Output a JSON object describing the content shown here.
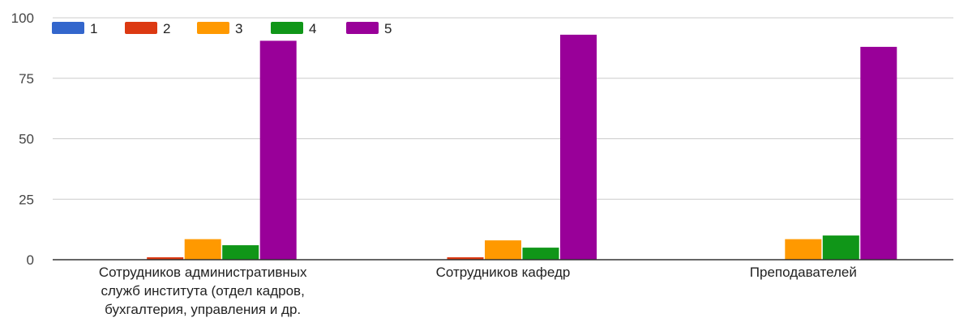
{
  "chart_data": {
    "type": "bar",
    "categories": [
      [
        "Сотрудников административных",
        "служб института (отдел кадров,",
        "бухгалтерия, управления и др."
      ],
      [
        "Сотрудников кафедр"
      ],
      [
        "Преподавателей"
      ]
    ],
    "series": [
      {
        "name": "1",
        "color": "#3366cc",
        "values": [
          0,
          0,
          0
        ]
      },
      {
        "name": "2",
        "color": "#dc3912",
        "values": [
          1,
          1,
          0
        ]
      },
      {
        "name": "3",
        "color": "#ff9900",
        "values": [
          8.5,
          8,
          8.5
        ]
      },
      {
        "name": "4",
        "color": "#109618",
        "values": [
          6,
          5,
          10
        ]
      },
      {
        "name": "5",
        "color": "#990099",
        "values": [
          90.5,
          93,
          88
        ]
      }
    ],
    "yticks": [
      0,
      25,
      50,
      75,
      100
    ],
    "ylim": [
      0,
      100
    ],
    "grid": true,
    "legend_position": "top-left",
    "title": "",
    "xlabel": "",
    "ylabel": ""
  }
}
